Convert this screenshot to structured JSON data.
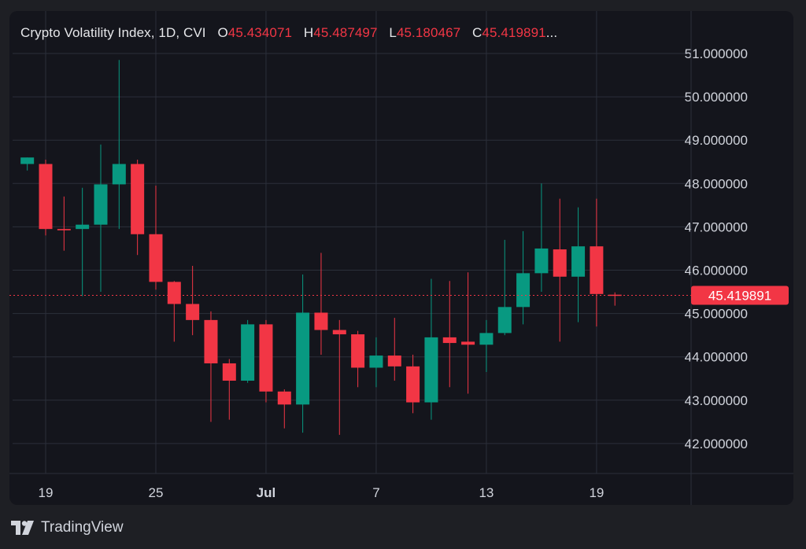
{
  "legend": {
    "title": "Crypto Volatility Index, 1D, CVI",
    "o_label": "O",
    "o_value": "45.434071",
    "h_label": "H",
    "h_value": "45.487497",
    "l_label": "L",
    "l_value": "45.180467",
    "c_label": "C",
    "c_value": "45.419891",
    "ellipsis": "..."
  },
  "price_label": "45.419891",
  "brand": {
    "name": "TradingView",
    "logo_icon": "tradingview-logo-icon"
  },
  "colors": {
    "up": "#089981",
    "down": "#f23645",
    "grid": "#2b2f3a",
    "text": "#d1d4dc",
    "price_line": "#f23645",
    "background": "#14151c"
  },
  "chart_data": {
    "type": "candlestick",
    "title": "Crypto Volatility Index, 1D, CVI",
    "x_tick_labels": [
      {
        "day": 1,
        "label": "19"
      },
      {
        "day": 7,
        "label": "25"
      },
      {
        "day": 13,
        "label": "Jul"
      },
      {
        "day": 19,
        "label": "7"
      },
      {
        "day": 25,
        "label": "13"
      },
      {
        "day": 31,
        "label": "19"
      }
    ],
    "y_ticks": [
      42,
      43,
      44,
      45,
      46,
      47,
      48,
      49,
      50,
      51
    ],
    "y_tick_labels": [
      "42.000000",
      "43.000000",
      "44.000000",
      "45.000000",
      "46.000000",
      "47.000000",
      "48.000000",
      "49.000000",
      "50.000000",
      "51.000000"
    ],
    "ylim": [
      41.0,
      51.2
    ],
    "xlim": [
      0.5,
      37.5
    ],
    "last_price": 45.419891,
    "grid": true,
    "candles": [
      {
        "day": 0,
        "o": 48.45,
        "h": 48.6,
        "c": 48.6,
        "l": 48.3
      },
      {
        "day": 1,
        "o": 48.45,
        "h": 48.55,
        "l": 46.8,
        "c": 46.95
      },
      {
        "day": 2,
        "o": 46.95,
        "h": 47.7,
        "l": 46.45,
        "c": 46.92
      },
      {
        "day": 3,
        "o": 46.95,
        "h": 47.9,
        "l": 45.4,
        "c": 47.05
      },
      {
        "day": 4,
        "o": 47.05,
        "h": 48.9,
        "l": 45.5,
        "c": 47.98
      },
      {
        "day": 5,
        "o": 47.98,
        "h": 50.85,
        "l": 46.95,
        "c": 48.45
      },
      {
        "day": 6,
        "o": 48.45,
        "h": 48.55,
        "l": 46.35,
        "c": 46.83
      },
      {
        "day": 7,
        "o": 46.83,
        "h": 47.95,
        "l": 45.55,
        "c": 45.73
      },
      {
        "day": 8,
        "o": 45.73,
        "h": 45.75,
        "l": 44.35,
        "c": 45.22
      },
      {
        "day": 9,
        "o": 45.22,
        "h": 46.1,
        "l": 44.5,
        "c": 44.85
      },
      {
        "day": 10,
        "o": 44.85,
        "h": 45.05,
        "l": 42.5,
        "c": 43.85
      },
      {
        "day": 11,
        "o": 43.85,
        "h": 43.95,
        "l": 42.55,
        "c": 43.45
      },
      {
        "day": 12,
        "o": 43.45,
        "h": 44.85,
        "l": 43.4,
        "c": 44.75
      },
      {
        "day": 13,
        "o": 44.75,
        "h": 44.85,
        "l": 42.95,
        "c": 43.2
      },
      {
        "day": 14,
        "o": 43.2,
        "h": 43.25,
        "l": 42.35,
        "c": 42.9
      },
      {
        "day": 15,
        "o": 42.9,
        "h": 45.9,
        "l": 42.25,
        "c": 45.02
      },
      {
        "day": 16,
        "o": 45.02,
        "h": 46.4,
        "l": 44.05,
        "c": 44.62
      },
      {
        "day": 17,
        "o": 44.62,
        "h": 44.85,
        "l": 42.2,
        "c": 44.52
      },
      {
        "day": 18,
        "o": 44.52,
        "h": 44.6,
        "l": 43.3,
        "c": 43.75
      },
      {
        "day": 19,
        "o": 43.75,
        "h": 44.45,
        "l": 43.3,
        "c": 44.03
      },
      {
        "day": 20,
        "o": 44.03,
        "h": 44.9,
        "l": 43.45,
        "c": 43.78
      },
      {
        "day": 21,
        "o": 43.78,
        "h": 44.05,
        "l": 42.7,
        "c": 42.95
      },
      {
        "day": 22,
        "o": 42.95,
        "h": 45.8,
        "l": 42.55,
        "c": 44.45
      },
      {
        "day": 23,
        "o": 44.45,
        "h": 45.75,
        "l": 43.3,
        "c": 44.32
      },
      {
        "day": 24,
        "o": 44.35,
        "h": 45.95,
        "l": 43.15,
        "c": 44.28
      },
      {
        "day": 25,
        "o": 44.28,
        "h": 44.85,
        "l": 43.65,
        "c": 44.55
      },
      {
        "day": 26,
        "o": 44.55,
        "h": 46.7,
        "l": 44.5,
        "c": 45.15
      },
      {
        "day": 27,
        "o": 45.15,
        "h": 46.9,
        "l": 44.75,
        "c": 45.93
      },
      {
        "day": 28,
        "o": 45.93,
        "h": 48.0,
        "l": 45.5,
        "c": 46.5
      },
      {
        "day": 29,
        "o": 46.48,
        "h": 47.65,
        "l": 44.35,
        "c": 45.85
      },
      {
        "day": 30,
        "o": 45.85,
        "h": 47.45,
        "l": 44.8,
        "c": 46.55
      },
      {
        "day": 31,
        "o": 46.55,
        "h": 47.65,
        "l": 44.7,
        "c": 45.45
      },
      {
        "day": 32,
        "o": 45.434071,
        "h": 45.487497,
        "l": 45.180467,
        "c": 45.419891
      }
    ]
  }
}
